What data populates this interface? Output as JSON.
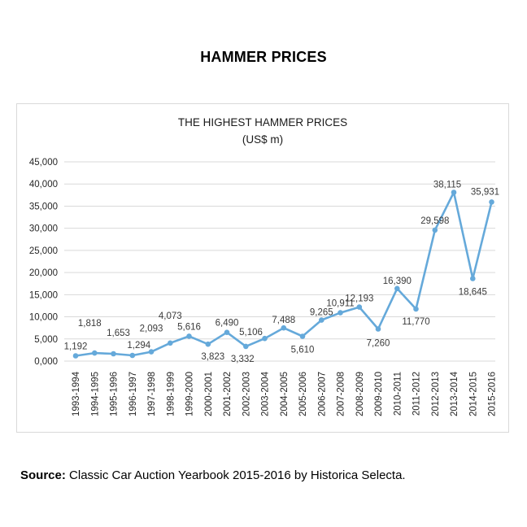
{
  "header": {
    "title": "HAMMER PRICES"
  },
  "footer": {
    "source_label": "Source:",
    "source_text": "Classic Car Auction Yearbook 2015-2016 by Historica Selecta."
  },
  "chart_data": {
    "type": "line",
    "title": "THE HIGHEST HAMMER PRICES",
    "subtitle": "(US$ m)",
    "categories": [
      "1993-1994",
      "1994-1995",
      "1995-1996",
      "1996-1997",
      "1997-1998",
      "1998-1999",
      "1999-2000",
      "2000-2001",
      "2001-2002",
      "2002-2003",
      "2003-2004",
      "2004-2005",
      "2005-2006",
      "2006-2007",
      "2007-2008",
      "2008-2009",
      "2009-2010",
      "2010-2011",
      "2011-2012",
      "2012-2013",
      "2013-2014",
      "2014-2015",
      "2015-2016"
    ],
    "values": [
      1192,
      1818,
      1653,
      1294,
      2093,
      4073,
      5616,
      3823,
      6490,
      3332,
      5106,
      7488,
      5610,
      9265,
      10911,
      12193,
      7260,
      16390,
      11770,
      29598,
      38115,
      18645,
      35931
    ],
    "value_labels": [
      "1,192",
      "1,818",
      "1,653",
      "1,294",
      "2,093",
      "4,073",
      "5,616",
      "3,823",
      "6,490",
      "3,332",
      "5,106",
      "7,488",
      "5,610",
      "9,265",
      "10,911",
      "12,193",
      "7,260",
      "16,390",
      "11,770",
      "29,598",
      "38,115",
      "18,645",
      "35,931"
    ],
    "label_placement": [
      "above",
      "above",
      "above",
      "above",
      "above",
      "above",
      "above",
      "below",
      "above",
      "below",
      "above",
      "above",
      "below",
      "above",
      "above",
      "above",
      "below",
      "above",
      "below",
      "above",
      "above",
      "below",
      "above"
    ],
    "label_dx": [
      0,
      -6,
      6,
      8,
      0,
      0,
      0,
      6,
      0,
      -4,
      -17,
      0,
      0,
      0,
      0,
      0,
      0,
      0,
      0,
      0,
      -8,
      0,
      -8
    ],
    "label_dy": [
      -8,
      -33,
      -22,
      -9,
      -25,
      -30,
      -8,
      19,
      -8,
      19,
      -4,
      -6,
      20,
      -6,
      -8,
      -7,
      21,
      -6,
      19,
      -8,
      -6,
      20,
      -9
    ],
    "y_tick_values": [
      0,
      5000,
      10000,
      15000,
      20000,
      25000,
      30000,
      35000,
      40000,
      45000
    ],
    "y_tick_labels": [
      "0,000",
      "5,000",
      "10,000",
      "15,000",
      "20,000",
      "25,000",
      "30,000",
      "35,000",
      "40,000",
      "45,000"
    ],
    "ylim": [
      0,
      45000
    ],
    "grid": true,
    "legend_position": "none",
    "colors": {
      "line": "#65a9da",
      "marker": "#65a9da",
      "grid": "#d9d9d9",
      "frame_border": "#d9d9d9",
      "axis_text": "#262626",
      "data_label_text": "#3a3a3a"
    }
  }
}
